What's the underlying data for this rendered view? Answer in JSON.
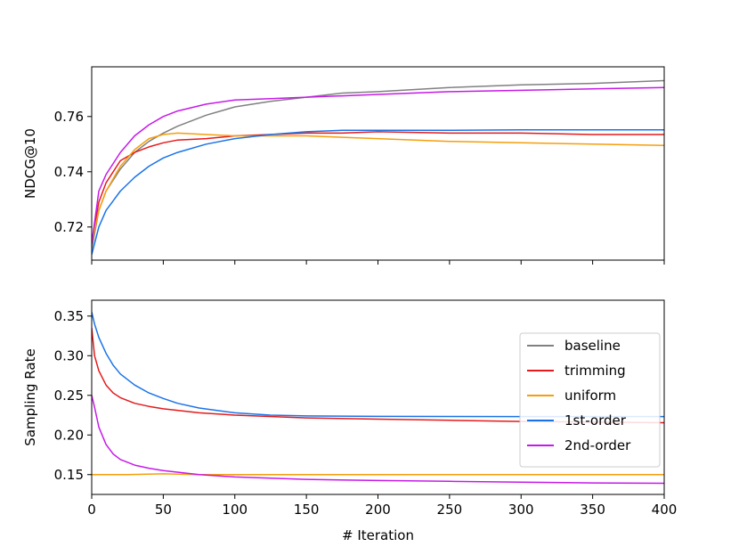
{
  "chart_data": [
    {
      "type": "line",
      "title": "",
      "xlabel": "",
      "ylabel": "NDCG@10",
      "xlim": [
        0,
        400
      ],
      "ylim": [
        0.708,
        0.778
      ],
      "x_ticks": [
        0,
        50,
        100,
        150,
        200,
        250,
        300,
        350,
        400
      ],
      "x_ticklabels_shown": false,
      "y_ticks": [
        0.72,
        0.74,
        0.76
      ],
      "y_ticklabels": [
        "0.72",
        "0.74",
        "0.76"
      ],
      "grid": false,
      "series": [
        {
          "name": "baseline",
          "color": "#808080",
          "x": [
            0,
            5,
            10,
            20,
            30,
            40,
            50,
            60,
            80,
            100,
            125,
            150,
            175,
            200,
            250,
            300,
            350,
            400
          ],
          "y": [
            0.712,
            0.726,
            0.733,
            0.741,
            0.747,
            0.751,
            0.754,
            0.7565,
            0.7605,
            0.7635,
            0.7655,
            0.767,
            0.7685,
            0.769,
            0.7705,
            0.7715,
            0.772,
            0.773
          ]
        },
        {
          "name": "trimming",
          "color": "#e41a1c",
          "x": [
            0,
            5,
            10,
            20,
            30,
            40,
            50,
            60,
            80,
            100,
            125,
            150,
            175,
            200,
            250,
            300,
            350,
            400
          ],
          "y": [
            0.714,
            0.729,
            0.736,
            0.744,
            0.747,
            0.749,
            0.7505,
            0.7515,
            0.752,
            0.753,
            0.7535,
            0.754,
            0.754,
            0.7545,
            0.754,
            0.754,
            0.7535,
            0.7535
          ]
        },
        {
          "name": "uniform",
          "color": "#f59e0b",
          "x": [
            0,
            5,
            10,
            20,
            30,
            40,
            50,
            60,
            80,
            100,
            125,
            150,
            175,
            200,
            250,
            300,
            350,
            400
          ],
          "y": [
            0.714,
            0.726,
            0.733,
            0.742,
            0.748,
            0.752,
            0.7535,
            0.754,
            0.7535,
            0.753,
            0.753,
            0.753,
            0.7525,
            0.752,
            0.751,
            0.7505,
            0.75,
            0.7495
          ]
        },
        {
          "name": "1st-order",
          "color": "#1a73e8",
          "x": [
            0,
            5,
            10,
            20,
            30,
            40,
            50,
            60,
            80,
            100,
            125,
            150,
            175,
            200,
            250,
            300,
            350,
            400
          ],
          "y": [
            0.71,
            0.72,
            0.726,
            0.733,
            0.738,
            0.742,
            0.745,
            0.747,
            0.75,
            0.752,
            0.7535,
            0.7545,
            0.755,
            0.755,
            0.755,
            0.7552,
            0.7552,
            0.7552
          ]
        },
        {
          "name": "2nd-order",
          "color": "#c61ae8",
          "x": [
            0,
            5,
            10,
            20,
            30,
            40,
            50,
            60,
            80,
            100,
            125,
            150,
            175,
            200,
            250,
            300,
            350,
            400
          ],
          "y": [
            0.714,
            0.733,
            0.739,
            0.747,
            0.753,
            0.757,
            0.76,
            0.762,
            0.7645,
            0.766,
            0.7665,
            0.767,
            0.7675,
            0.768,
            0.769,
            0.7695,
            0.77,
            0.7705
          ]
        }
      ]
    },
    {
      "type": "line",
      "title": "",
      "xlabel": "# Iteration",
      "ylabel": "Sampling Rate",
      "xlim": [
        0,
        400
      ],
      "ylim": [
        0.125,
        0.37
      ],
      "x_ticks": [
        0,
        50,
        100,
        150,
        200,
        250,
        300,
        350,
        400
      ],
      "x_ticklabels": [
        "0",
        "50",
        "100",
        "150",
        "200",
        "250",
        "300",
        "350",
        "400"
      ],
      "y_ticks": [
        0.15,
        0.2,
        0.25,
        0.3,
        0.35
      ],
      "y_ticklabels": [
        "0.15",
        "0.20",
        "0.25",
        "0.30",
        "0.35"
      ],
      "grid": false,
      "legend_position": "center-right",
      "series": [
        {
          "name": "baseline",
          "color": "#808080",
          "x": [],
          "y": []
        },
        {
          "name": "trimming",
          "color": "#e41a1c",
          "x": [
            0,
            2,
            5,
            10,
            15,
            20,
            30,
            40,
            50,
            75,
            100,
            150,
            200,
            250,
            300,
            350,
            400
          ],
          "y": [
            0.335,
            0.3,
            0.281,
            0.263,
            0.253,
            0.247,
            0.24,
            0.236,
            0.233,
            0.228,
            0.225,
            0.2215,
            0.22,
            0.2185,
            0.217,
            0.2163,
            0.2155
          ]
        },
        {
          "name": "uniform",
          "color": "#f59e0b",
          "x": [
            0,
            25,
            50,
            75,
            100,
            150,
            200,
            250,
            300,
            350,
            400
          ],
          "y": [
            0.15,
            0.15,
            0.151,
            0.15,
            0.15,
            0.15,
            0.15,
            0.15,
            0.15,
            0.15,
            0.15
          ]
        },
        {
          "name": "1st-order",
          "color": "#1a73e8",
          "x": [
            0,
            2,
            5,
            10,
            15,
            20,
            30,
            40,
            50,
            60,
            75,
            100,
            125,
            150,
            200,
            250,
            300,
            350,
            400
          ],
          "y": [
            0.355,
            0.34,
            0.323,
            0.303,
            0.288,
            0.277,
            0.263,
            0.253,
            0.246,
            0.24,
            0.234,
            0.228,
            0.225,
            0.224,
            0.2235,
            0.2233,
            0.2232,
            0.2232,
            0.2232
          ]
        },
        {
          "name": "2nd-order",
          "color": "#c61ae8",
          "x": [
            0,
            2,
            5,
            10,
            15,
            20,
            30,
            40,
            50,
            75,
            100,
            150,
            200,
            250,
            300,
            350,
            400
          ],
          "y": [
            0.25,
            0.235,
            0.21,
            0.188,
            0.176,
            0.169,
            0.162,
            0.158,
            0.155,
            0.15,
            0.147,
            0.144,
            0.1425,
            0.1415,
            0.1405,
            0.1395,
            0.139
          ]
        }
      ]
    }
  ]
}
